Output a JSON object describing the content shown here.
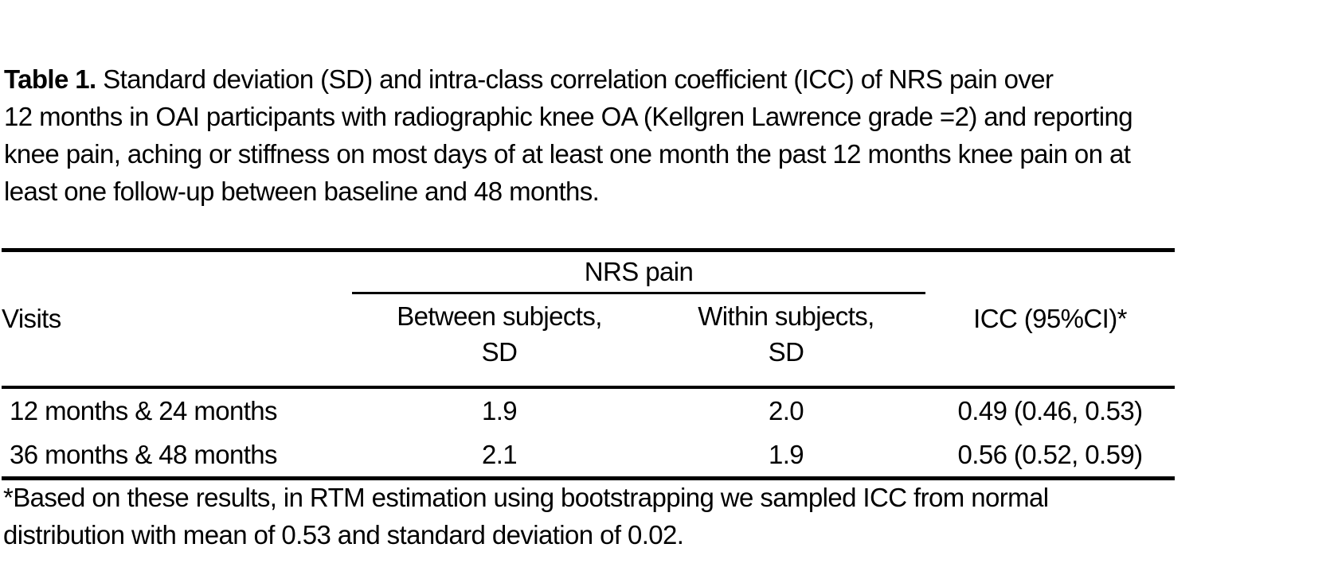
{
  "title": {
    "bold": "Table 1.",
    "line1_rest": " Standard deviation (SD) and intra-class correlation coefficient (ICC) of NRS pain over",
    "line2": "12 months in OAI participants with radiographic knee OA (Kellgren Lawrence grade =2) and reporting",
    "line3": "knee pain, aching or stiffness on most days of at least one month the past 12 months knee pain on at",
    "line4": "least one follow-up between baseline and 48 months."
  },
  "table": {
    "spanner_label": "NRS pain",
    "col_visits": "Visits",
    "col_between_line1": "Between subjects,",
    "col_between_line2": "SD",
    "col_within_line1": "Within subjects,",
    "col_within_line2": "SD",
    "col_icc": "ICC (95%CI)*",
    "rows": [
      {
        "visits": "12 months & 24 months",
        "between_sd": "1.9",
        "within_sd": "2.0",
        "icc": "0.49 (0.46, 0.53)"
      },
      {
        "visits": "36 months & 48 months",
        "between_sd": "2.1",
        "within_sd": "1.9",
        "icc": "0.56 (0.52, 0.59)"
      }
    ]
  },
  "footnote": {
    "line1": "*Based on these results, in RTM estimation using bootstrapping we sampled ICC from normal",
    "line2": "distribution with mean of 0.53 and standard deviation of 0.02."
  },
  "chart_data": {
    "type": "table",
    "title": "Table 1. Standard deviation (SD) and intra-class correlation coefficient (ICC) of NRS pain over 12 months in OAI participants with radiographic knee OA (Kellgren Lawrence grade =2) and reporting knee pain, aching or stiffness on most days of at least one month the past 12 months knee pain on at least one follow-up between baseline and 48 months.",
    "column_group": "NRS pain",
    "columns": [
      "Visits",
      "Between subjects, SD",
      "Within subjects, SD",
      "ICC (95%CI)*"
    ],
    "rows": [
      [
        "12 months & 24 months",
        1.9,
        2.0,
        "0.49 (0.46, 0.53)"
      ],
      [
        "36 months & 48 months",
        2.1,
        1.9,
        "0.56 (0.52, 0.59)"
      ]
    ],
    "footnote": "*Based on these results, in RTM estimation using bootstrapping we sampled ICC from normal distribution with mean of 0.53 and standard deviation of 0.02.",
    "colors": {
      "text": "#000000",
      "background": "#ffffff",
      "rules": "#000000"
    }
  }
}
